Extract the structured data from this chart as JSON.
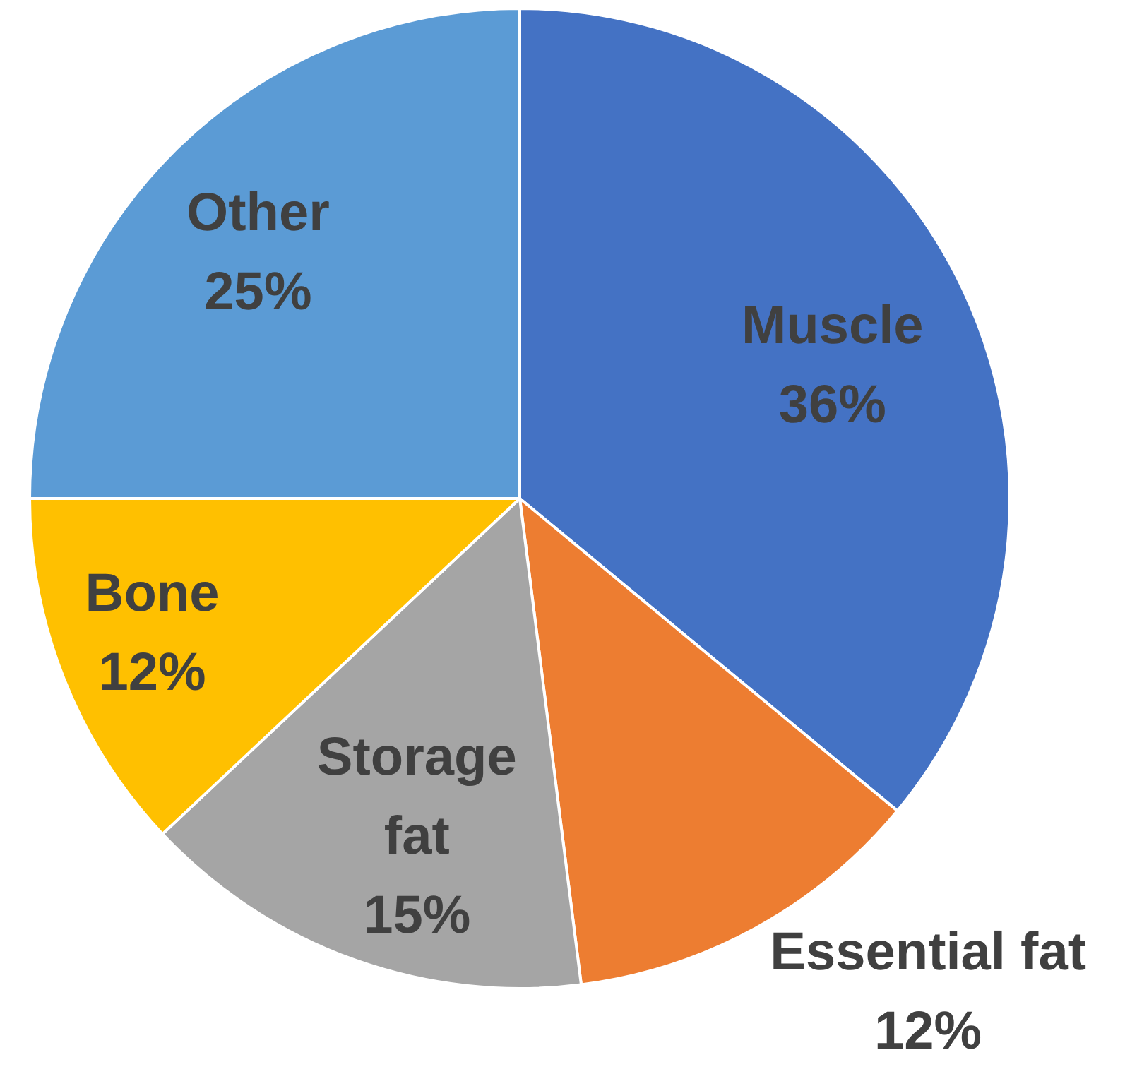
{
  "chart_data": {
    "type": "pie",
    "categories": [
      "Muscle",
      "Essential fat",
      "Storage fat",
      "Bone",
      "Other"
    ],
    "values": [
      36,
      12,
      15,
      12,
      25
    ],
    "value_labels": [
      "36%",
      "12%",
      "15%",
      "12%",
      "25%"
    ],
    "colors": [
      "#4472c4",
      "#ed7d31",
      "#a5a5a5",
      "#ffc000",
      "#5b9bd5"
    ],
    "legend": false
  }
}
